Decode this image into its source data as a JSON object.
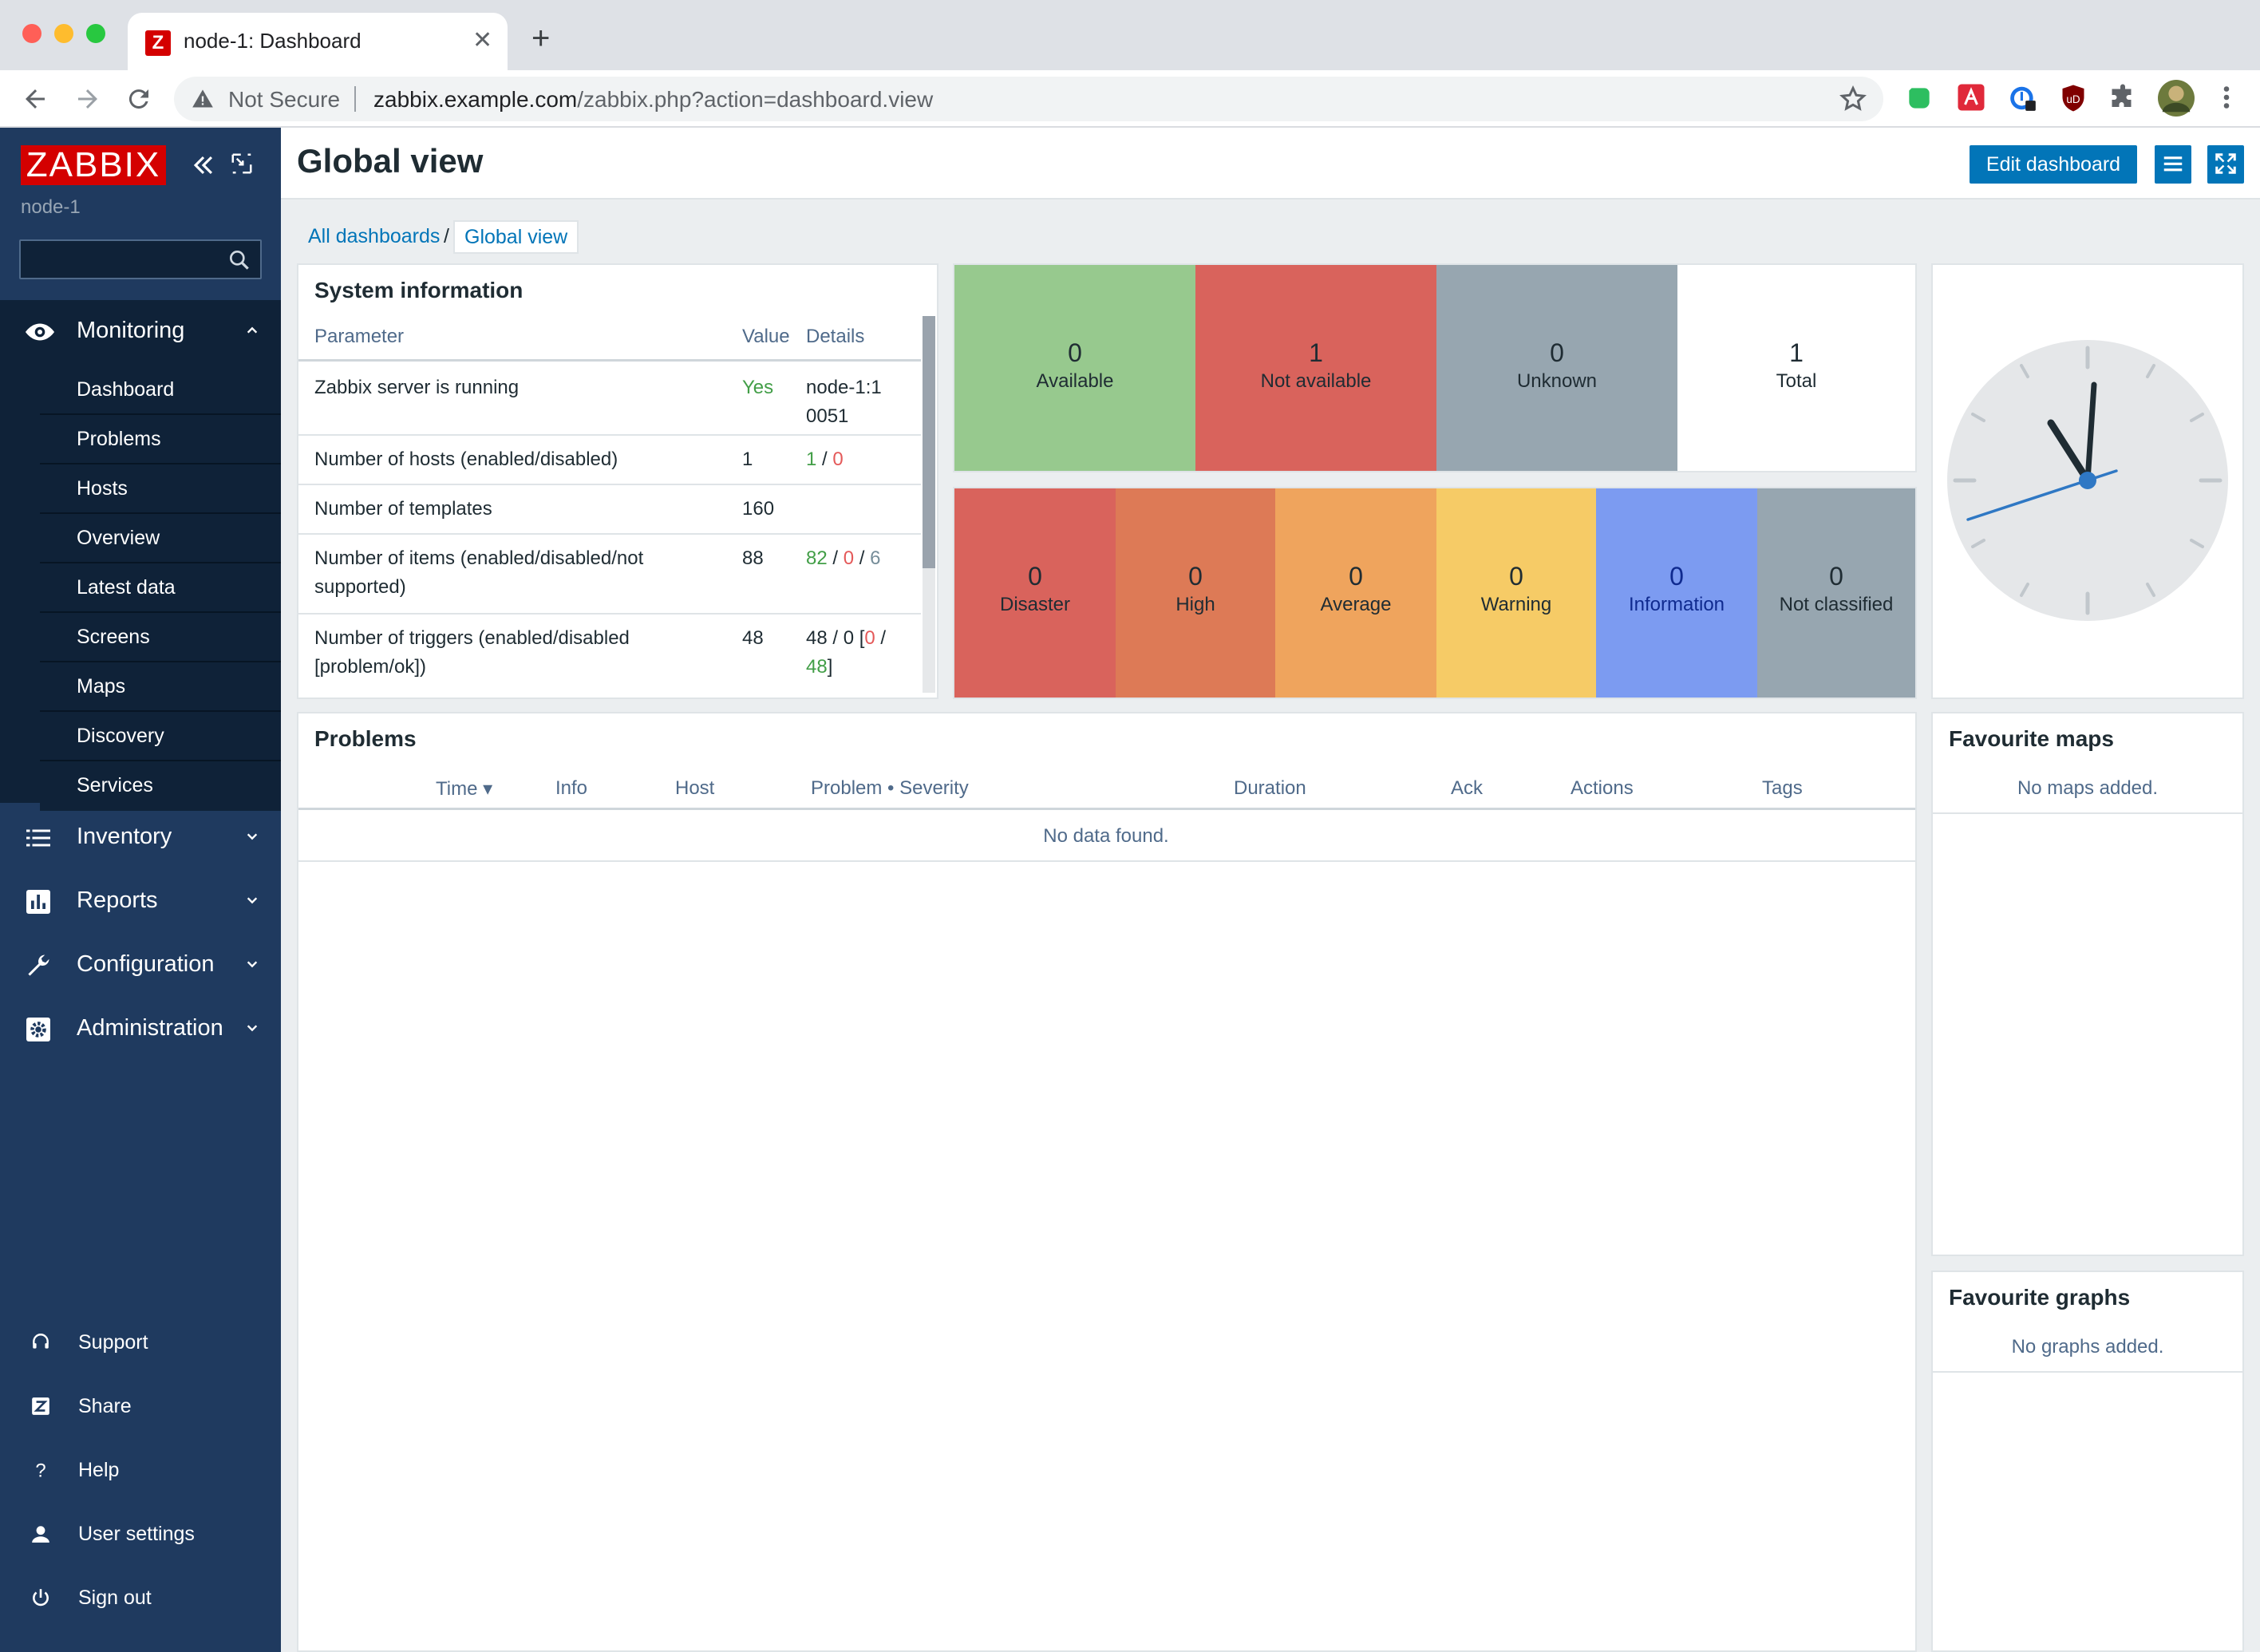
{
  "browser": {
    "tab_title": "node-1: Dashboard",
    "tab_favicon": "Z",
    "new_tab_label": "+",
    "security_label": "Not Secure",
    "url_host": "zabbix.example.com",
    "url_path": "/zabbix.php?action=dashboard.view"
  },
  "sidebar": {
    "logo": "ZABBIX",
    "server_name": "node-1",
    "search_placeholder": "",
    "monitoring": {
      "label": "Monitoring",
      "items": [
        "Dashboard",
        "Problems",
        "Hosts",
        "Overview",
        "Latest data",
        "Screens",
        "Maps",
        "Discovery",
        "Services"
      ]
    },
    "sections": [
      "Inventory",
      "Reports",
      "Configuration",
      "Administration"
    ],
    "footer": [
      "Support",
      "Share",
      "Help",
      "User settings",
      "Sign out"
    ]
  },
  "header": {
    "title": "Global view",
    "edit_button": "Edit dashboard"
  },
  "breadcrumb": {
    "all": "All dashboards",
    "sep": "/",
    "current": "Global view"
  },
  "system_info": {
    "title": "System information",
    "columns": [
      "Parameter",
      "Value",
      "Details"
    ],
    "rows": [
      {
        "param": [
          "Zabbix server is running"
        ],
        "value": "Yes",
        "details": "node-1:10051"
      },
      {
        "param": [
          "Number of hosts (enabled/disabled)"
        ],
        "value": "1",
        "d1": "1",
        "d2": "0"
      },
      {
        "param": [
          "Number of templates"
        ],
        "value": "160"
      },
      {
        "param": [
          "Number of items (enabled/disabled/not",
          "supported)"
        ],
        "value": "88",
        "d1": "82",
        "d2": "0",
        "d3": "6"
      },
      {
        "param": [
          "Number of triggers (enabled/disabled",
          "[problem/ok])"
        ],
        "value": "48",
        "d1": "48 / 0 [",
        "d2": "0",
        "d3": " /",
        "d4": "48",
        "d5": "]"
      }
    ]
  },
  "host_availability": [
    {
      "count": "0",
      "label": "Available",
      "color": "#97c98e"
    },
    {
      "count": "1",
      "label": "Not available",
      "color": "#d9635c"
    },
    {
      "count": "0",
      "label": "Unknown",
      "color": "#97a6b0"
    },
    {
      "count": "1",
      "label": "Total",
      "color": "#ffffff"
    }
  ],
  "problems_by_severity": [
    {
      "count": "0",
      "label": "Disaster",
      "color": "#d9635c"
    },
    {
      "count": "0",
      "label": "High",
      "color": "#dd7a56"
    },
    {
      "count": "0",
      "label": "Average",
      "color": "#efa45d"
    },
    {
      "count": "0",
      "label": "Warning",
      "color": "#f6cb66"
    },
    {
      "count": "0",
      "label": "Information",
      "color": "#7c9bf1"
    },
    {
      "count": "0",
      "label": "Not classified",
      "color": "#97a6b0"
    }
  ],
  "problems": {
    "title": "Problems",
    "columns": [
      "Time ▾",
      "Info",
      "Host",
      "Problem • Severity",
      "Duration",
      "Ack",
      "Actions",
      "Tags"
    ],
    "empty": "No data found."
  },
  "favourite_maps": {
    "title": "Favourite maps",
    "empty": "No maps added."
  },
  "favourite_graphs": {
    "title": "Favourite graphs",
    "empty": "No graphs added."
  },
  "colors": {
    "brand": "#d40000",
    "sidebar": "#1f3a5f",
    "accent": "#0275b8"
  }
}
